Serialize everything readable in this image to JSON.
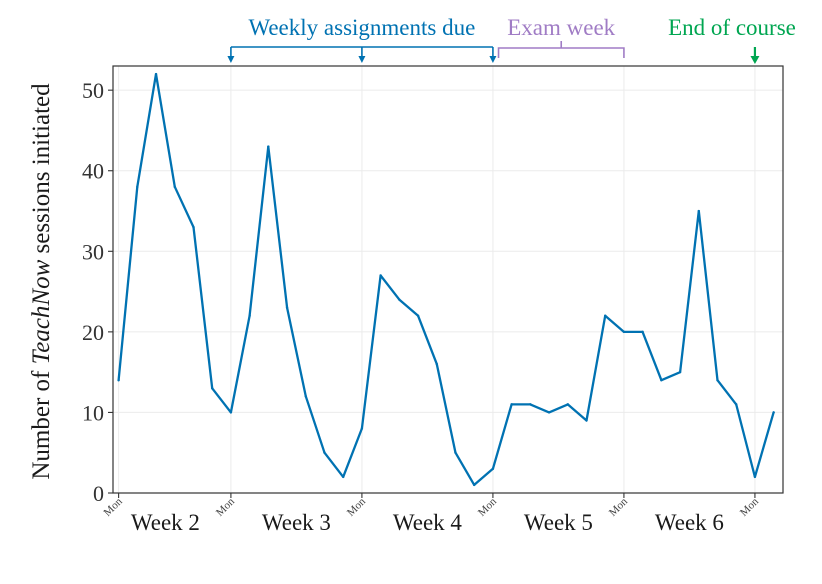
{
  "chart_data": {
    "type": "line",
    "ylabel_parts": [
      "Number of ",
      "TeachNow",
      " sessions initiated"
    ],
    "ylim": [
      0,
      53
    ],
    "yticks": [
      0,
      10,
      20,
      30,
      40,
      50
    ],
    "x": [
      0,
      1,
      2,
      3,
      4,
      5,
      6,
      7,
      8,
      9,
      10,
      11,
      12,
      13,
      14,
      15,
      16,
      17,
      18,
      19,
      20,
      21,
      22,
      23,
      24,
      25,
      26,
      27,
      28,
      29,
      30,
      31,
      32,
      33,
      34,
      35
    ],
    "xlim": [
      -0.3,
      35.5
    ],
    "values": [
      14,
      38,
      52,
      38,
      33,
      13,
      10,
      22,
      43,
      23,
      12,
      5,
      2,
      8,
      27,
      24,
      22,
      16,
      5,
      1,
      3,
      11,
      11,
      10,
      11,
      9,
      22,
      20,
      20,
      14,
      15,
      35,
      14,
      11,
      2,
      10
    ],
    "color": "#0072b2",
    "mon_ticks": [
      {
        "x": 0,
        "label": "Mon"
      },
      {
        "x": 6,
        "label": "Mon"
      },
      {
        "x": 13,
        "label": "Mon"
      },
      {
        "x": 20,
        "label": "Mon"
      },
      {
        "x": 27,
        "label": "Mon"
      },
      {
        "x": 34,
        "label": "Mon"
      }
    ],
    "weeks": [
      {
        "x": 2.5,
        "label": "Week 2"
      },
      {
        "x": 9.5,
        "label": "Week 3"
      },
      {
        "x": 16.5,
        "label": "Week 4"
      },
      {
        "x": 23.5,
        "label": "Week 5"
      },
      {
        "x": 30.5,
        "label": "Week 6"
      }
    ],
    "grid": true,
    "annotations": {
      "weekly": {
        "label": "Weekly assignments due",
        "color": "#0072b2",
        "from_x": 6,
        "to_x": 20,
        "arrows_x": [
          6,
          13,
          20
        ]
      },
      "exam": {
        "label": "Exam week",
        "color": "#a07cc5",
        "from_x": 20.3,
        "to_x": 27
      },
      "end": {
        "label": "End of course",
        "color": "#00a651",
        "x": 34
      }
    }
  }
}
